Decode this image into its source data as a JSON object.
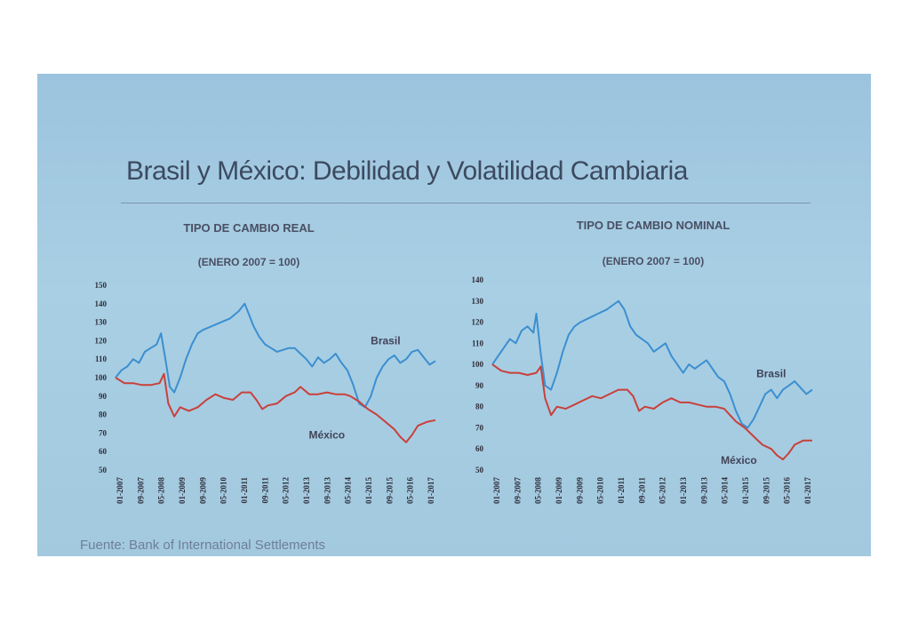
{
  "slide": {
    "title": "Brasil y México: Debilidad y Volatilidad Cambiaria",
    "source": "Fuente: Bank of International Settlements"
  },
  "colors": {
    "brasil": "#3b8fd0",
    "mexico": "#c9403b",
    "background": "#a6cbe1"
  },
  "chart_data": [
    {
      "type": "line",
      "title": "TIPO DE CAMBIO REAL",
      "subtitle": "(ENERO 2007 = 100)",
      "ylim": [
        50,
        150
      ],
      "yticks": [
        50,
        60,
        70,
        80,
        90,
        100,
        110,
        120,
        130,
        140,
        150
      ],
      "x_ticks": [
        "01-2007",
        "09-2007",
        "05-2008",
        "01-2009",
        "09-2009",
        "05-2010",
        "01-2011",
        "09-2011",
        "05-2012",
        "01-2013",
        "09-2013",
        "05-2014",
        "01-2015",
        "09-2015",
        "05-2016",
        "01-2017"
      ],
      "x_range": [
        2007.0,
        2017.9
      ],
      "series": [
        {
          "name": "Brasil",
          "x": [
            2007.0,
            2007.2,
            2007.4,
            2007.6,
            2007.8,
            2008.0,
            2008.2,
            2008.4,
            2008.55,
            2008.7,
            2008.85,
            2009.0,
            2009.2,
            2009.4,
            2009.6,
            2009.8,
            2010.0,
            2010.3,
            2010.6,
            2010.9,
            2011.2,
            2011.4,
            2011.55,
            2011.7,
            2011.9,
            2012.1,
            2012.3,
            2012.5,
            2012.7,
            2012.9,
            2013.1,
            2013.3,
            2013.5,
            2013.7,
            2013.9,
            2014.1,
            2014.3,
            2014.5,
            2014.7,
            2014.9,
            2015.1,
            2015.3,
            2015.5,
            2015.7,
            2015.9,
            2016.1,
            2016.3,
            2016.5,
            2016.7,
            2016.9,
            2017.1,
            2017.3,
            2017.5,
            2017.7,
            2017.9
          ],
          "values": [
            100,
            104,
            106,
            110,
            108,
            114,
            116,
            118,
            124,
            110,
            95,
            92,
            100,
            110,
            118,
            124,
            126,
            128,
            130,
            132,
            136,
            140,
            134,
            128,
            122,
            118,
            116,
            114,
            115,
            116,
            116,
            113,
            110,
            106,
            111,
            108,
            110,
            113,
            108,
            104,
            96,
            86,
            84,
            90,
            100,
            106,
            110,
            112,
            108,
            110,
            114,
            115,
            111,
            107,
            109
          ]
        },
        {
          "name": "México",
          "x": [
            2007.0,
            2007.3,
            2007.6,
            2007.9,
            2008.2,
            2008.5,
            2008.65,
            2008.8,
            2009.0,
            2009.2,
            2009.5,
            2009.8,
            2010.1,
            2010.4,
            2010.7,
            2011.0,
            2011.3,
            2011.6,
            2011.8,
            2012.0,
            2012.2,
            2012.5,
            2012.8,
            2013.1,
            2013.3,
            2013.6,
            2013.9,
            2014.2,
            2014.5,
            2014.8,
            2015.0,
            2015.3,
            2015.6,
            2015.9,
            2016.2,
            2016.5,
            2016.7,
            2016.9,
            2017.1,
            2017.3,
            2017.6,
            2017.9
          ],
          "values": [
            100,
            97,
            97,
            96,
            96,
            97,
            102,
            86,
            79,
            84,
            82,
            84,
            88,
            91,
            89,
            88,
            92,
            92,
            88,
            83,
            85,
            86,
            90,
            92,
            95,
            91,
            91,
            92,
            91,
            91,
            90,
            87,
            83,
            80,
            76,
            72,
            68,
            65,
            69,
            74,
            76,
            77
          ]
        }
      ]
    },
    {
      "type": "line",
      "title": "TIPO DE CAMBIO NOMINAL",
      "subtitle": "(ENERO 2007 = 100)",
      "ylim": [
        50,
        140
      ],
      "yticks": [
        50,
        60,
        70,
        80,
        90,
        100,
        110,
        120,
        130,
        140
      ],
      "x_ticks": [
        "01-2007",
        "09-2007",
        "05-2008",
        "01-2009",
        "09-2009",
        "05-2010",
        "01-2011",
        "09-2011",
        "05-2012",
        "01-2013",
        "09-2013",
        "05-2014",
        "01-2015",
        "09-2015",
        "05-2016",
        "01-2017"
      ],
      "x_range": [
        2007.0,
        2017.9
      ],
      "series": [
        {
          "name": "Brasil",
          "x": [
            2007.0,
            2007.2,
            2007.4,
            2007.6,
            2007.8,
            2008.0,
            2008.2,
            2008.4,
            2008.5,
            2008.65,
            2008.8,
            2009.0,
            2009.2,
            2009.4,
            2009.6,
            2009.8,
            2010.0,
            2010.3,
            2010.6,
            2010.9,
            2011.1,
            2011.3,
            2011.5,
            2011.7,
            2011.9,
            2012.1,
            2012.3,
            2012.5,
            2012.7,
            2012.9,
            2013.1,
            2013.3,
            2013.5,
            2013.7,
            2013.9,
            2014.1,
            2014.3,
            2014.5,
            2014.7,
            2014.9,
            2015.1,
            2015.3,
            2015.5,
            2015.7,
            2015.9,
            2016.1,
            2016.3,
            2016.5,
            2016.7,
            2016.9,
            2017.1,
            2017.3,
            2017.5,
            2017.7,
            2017.9
          ],
          "values": [
            100,
            104,
            108,
            112,
            110,
            116,
            118,
            115,
            124,
            105,
            90,
            88,
            96,
            106,
            114,
            118,
            120,
            122,
            124,
            126,
            128,
            130,
            126,
            118,
            114,
            112,
            110,
            106,
            108,
            110,
            104,
            100,
            96,
            100,
            98,
            100,
            102,
            98,
            94,
            92,
            86,
            78,
            72,
            70,
            74,
            80,
            86,
            88,
            84,
            88,
            90,
            92,
            89,
            86,
            88
          ]
        },
        {
          "name": "México",
          "x": [
            2007.0,
            2007.3,
            2007.6,
            2007.9,
            2008.2,
            2008.5,
            2008.65,
            2008.8,
            2009.0,
            2009.2,
            2009.5,
            2009.8,
            2010.1,
            2010.4,
            2010.7,
            2011.0,
            2011.3,
            2011.6,
            2011.8,
            2012.0,
            2012.2,
            2012.5,
            2012.8,
            2013.1,
            2013.4,
            2013.7,
            2014.0,
            2014.3,
            2014.6,
            2014.9,
            2015.1,
            2015.3,
            2015.6,
            2015.9,
            2016.2,
            2016.5,
            2016.7,
            2016.9,
            2017.1,
            2017.3,
            2017.6,
            2017.9
          ],
          "values": [
            100,
            97,
            96,
            96,
            95,
            96,
            99,
            84,
            76,
            80,
            79,
            81,
            83,
            85,
            84,
            86,
            88,
            88,
            85,
            78,
            80,
            79,
            82,
            84,
            82,
            82,
            81,
            80,
            80,
            79,
            76,
            73,
            70,
            66,
            62,
            60,
            57,
            55,
            58,
            62,
            64,
            64
          ]
        }
      ]
    }
  ]
}
